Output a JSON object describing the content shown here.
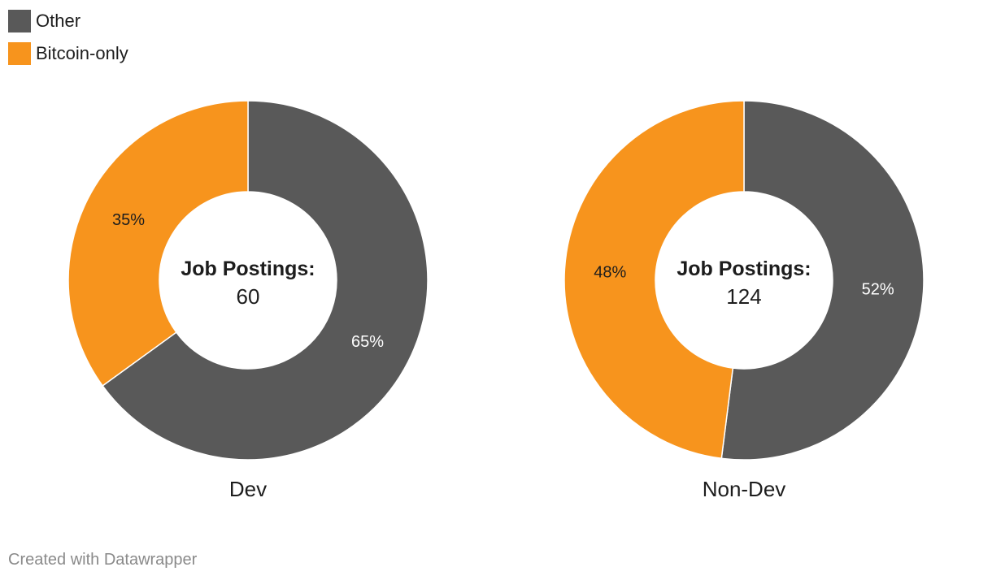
{
  "legend": [
    {
      "label": "Other",
      "color": "#595959"
    },
    {
      "label": "Bitcoin-only",
      "color": "#f7941d"
    }
  ],
  "chart_data": [
    {
      "type": "pie",
      "variant": "donut",
      "title": "Dev",
      "center_label": "Job Postings:",
      "center_value": "60",
      "slices": [
        {
          "name": "Other",
          "value": 65,
          "label": "65%",
          "color": "#595959"
        },
        {
          "name": "Bitcoin-only",
          "value": 35,
          "label": "35%",
          "color": "#f7941d"
        }
      ]
    },
    {
      "type": "pie",
      "variant": "donut",
      "title": "Non-Dev",
      "center_label": "Job Postings:",
      "center_value": "124",
      "slices": [
        {
          "name": "Other",
          "value": 52,
          "label": "52%",
          "color": "#595959"
        },
        {
          "name": "Bitcoin-only",
          "value": 48,
          "label": "48%",
          "color": "#f7941d"
        }
      ]
    }
  ],
  "footer": "Created with Datawrapper"
}
